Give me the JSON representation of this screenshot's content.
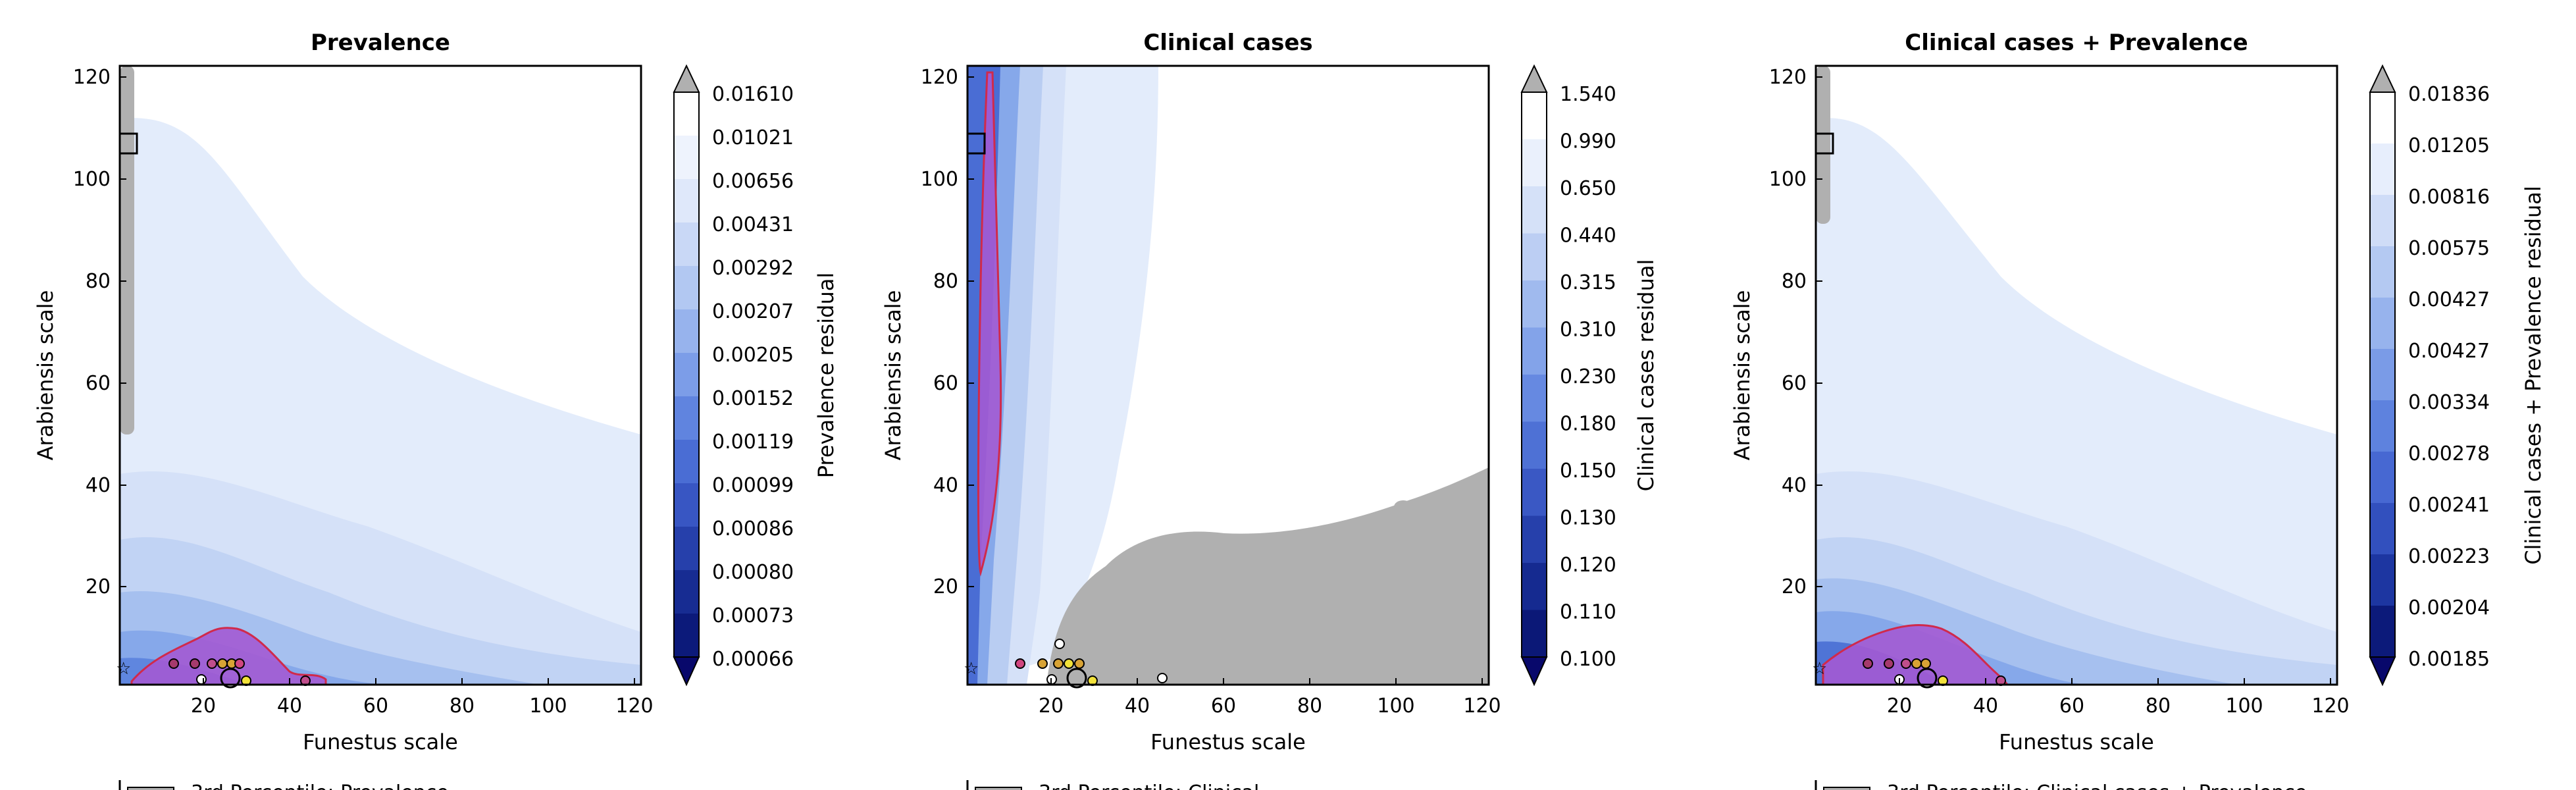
{
  "chart_data": [
    {
      "type": "contour",
      "title": "Prevalence",
      "xlabel": "Funestus scale",
      "ylabel": "Arabiensis scale",
      "xlim": [
        1,
        122
      ],
      "ylim": [
        1,
        122
      ],
      "xticks": [
        "20",
        "40",
        "60",
        "80",
        "100",
        "120"
      ],
      "yticks": [
        "20",
        "40",
        "60",
        "80",
        "100",
        "120"
      ],
      "colorbar": {
        "label": "Prevalence residual",
        "levels": [
          "0.00066",
          "0.00073",
          "0.00080",
          "0.00086",
          "0.00099",
          "0.00119",
          "0.00152",
          "0.00205",
          "0.00207",
          "0.00292",
          "0.00431",
          "0.00656",
          "0.01021",
          "0.01610"
        ],
        "extend": "both"
      },
      "legend_partial": "3rd Percentile: Prevalence",
      "optimum_region": "near low Funestus (10-45) and low Arabiensis (1-12)"
    },
    {
      "type": "contour",
      "title": "Clinical cases",
      "xlabel": "Funestus scale",
      "ylabel": "Arabiensis scale",
      "xlim": [
        1,
        122
      ],
      "ylim": [
        1,
        122
      ],
      "xticks": [
        "20",
        "40",
        "60",
        "80",
        "100",
        "120"
      ],
      "yticks": [
        "20",
        "40",
        "60",
        "80",
        "100",
        "120"
      ],
      "colorbar": {
        "label": "Clinical cases residual",
        "levels": [
          "0.100",
          "0.110",
          "0.120",
          "0.130",
          "0.150",
          "0.180",
          "0.230",
          "0.310",
          "0.315",
          "0.440",
          "0.650",
          "0.990",
          "1.540"
        ],
        "extend": "both"
      },
      "legend_partial": "3rd Percentile: Clinical",
      "optimum_region": "narrow band at low Funestus (2-8) across Arabiensis 25-120"
    },
    {
      "type": "contour",
      "title": "Clinical cases + Prevalence",
      "xlabel": "Funestus scale",
      "ylabel": "Arabiensis scale",
      "xlim": [
        1,
        122
      ],
      "ylim": [
        1,
        122
      ],
      "xticks": [
        "20",
        "40",
        "60",
        "80",
        "100",
        "120"
      ],
      "yticks": [
        "20",
        "40",
        "60",
        "80",
        "100",
        "120"
      ],
      "colorbar": {
        "label": "Clinical cases + Prevalence residual",
        "levels": [
          "0.00185",
          "0.00204",
          "0.00223",
          "0.00241",
          "0.00278",
          "0.00334",
          "0.00427",
          "0.00427",
          "0.00575",
          "0.00816",
          "0.01205",
          "0.01836"
        ],
        "extend": "both"
      },
      "legend_partial": "3rd Percentile: Clinical cases + Prevalence",
      "optimum_region": "near low Funestus (3-30) and low Arabiensis (1-13)"
    }
  ],
  "colors": {
    "band_dark": "#08086b",
    "band_light": "#e3ecfb",
    "percentile_fill": "#a35ad3",
    "percentile_edge": "#d02a4b",
    "out_of_range": "#b0b0b0"
  }
}
